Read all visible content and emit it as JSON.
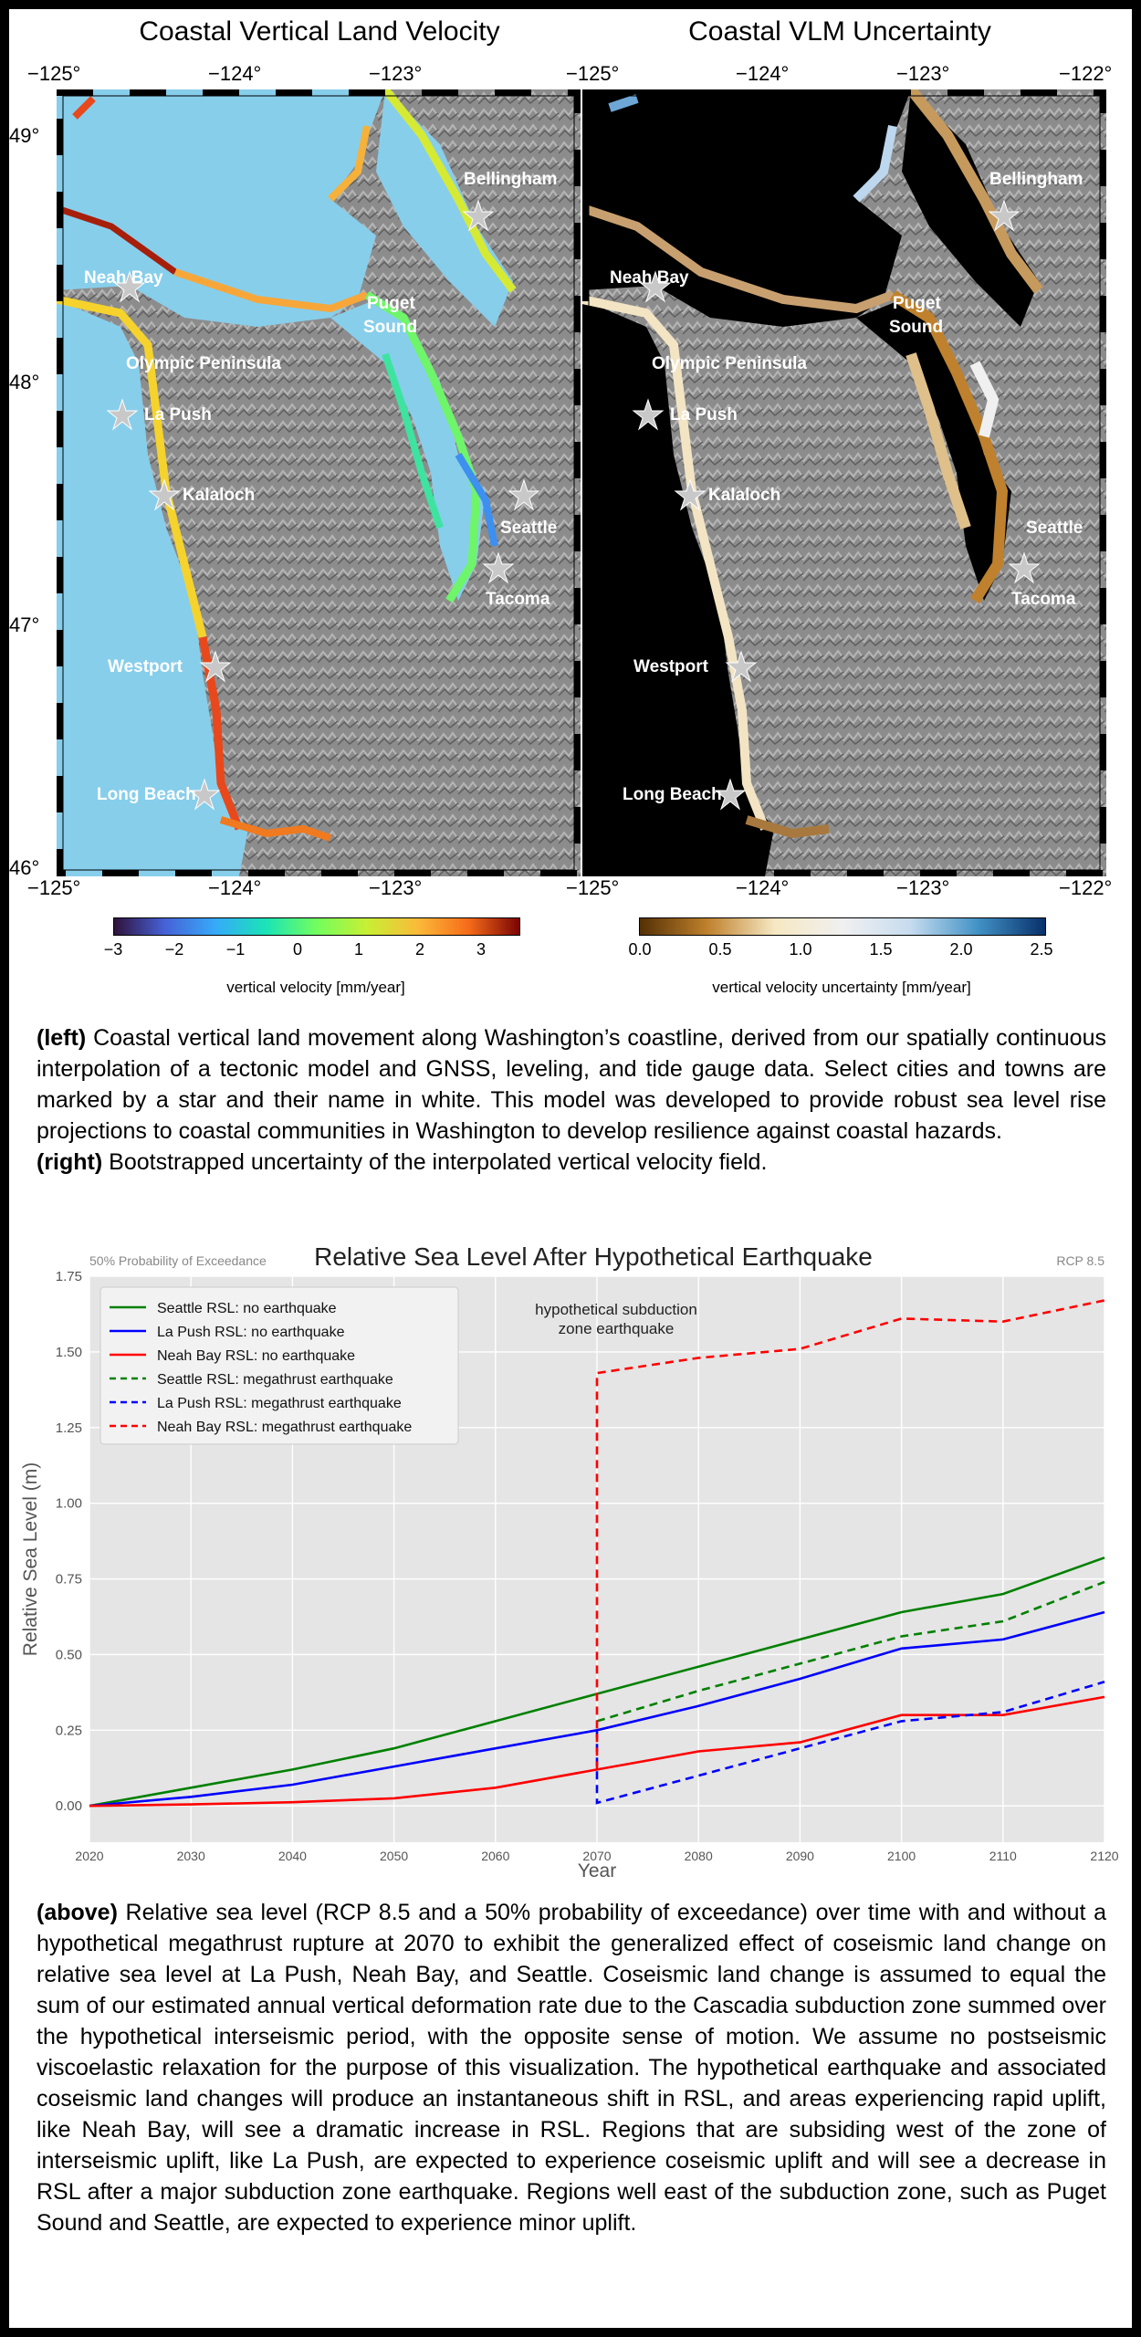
{
  "maps": {
    "left": {
      "title": "Coastal Vertical Land Velocity",
      "colorbar_ticks": [
        "−3",
        "−2",
        "−1",
        "0",
        "1",
        "2",
        "3"
      ],
      "colorbar_label": "vertical velocity [mm/year]"
    },
    "right": {
      "title": "Coastal VLM Uncertainty",
      "colorbar_ticks": [
        "0.0",
        "0.5",
        "1.0",
        "1.5",
        "2.0",
        "2.5"
      ],
      "colorbar_label": "vertical velocity uncertainty [mm/year]"
    },
    "lon_ticks_left": [
      "−125°",
      "−124°",
      "−123°"
    ],
    "lon_ticks_right": [
      "−125°",
      "−124°",
      "−123°",
      "−122°"
    ],
    "lat_ticks": [
      "49°",
      "48°",
      "47°",
      "46°"
    ],
    "cities": [
      "Bellingham",
      "Neah Bay",
      "Puget",
      "Sound",
      "Olympic Peninsula",
      "La Push",
      "Kalaloch",
      "Seattle",
      "Tacoma",
      "Westport",
      "Long Beach"
    ],
    "colors": {
      "water": "#87ceeb",
      "terrain": "#8a8a8a",
      "ocean_right": "#000000"
    }
  },
  "captions": {
    "left_label": "(left)",
    "left_text": " Coastal vertical land movement along Washington’s coastline, derived from our spatially continuous interpolation of a tectonic model and GNSS, leveling, and tide gauge data. Select cities and towns are marked by a star and their name in white. This model was developed to provide robust sea level rise projections to coastal communities in Washington to develop resilience against coastal hazards.",
    "right_label": "(right)",
    "right_text": " Bootstrapped uncertainty of the interpolated vertical velocity field.",
    "above_label": "(above)",
    "above_text": " Relative sea level (RCP 8.5 and a 50% probability of exceedance) over time with and without a hypothetical megathrust rupture at 2070 to exhibit the generalized effect of coseismic land change on relative sea level at La Push, Neah Bay, and Seattle. Coseismic land change is assumed to equal the sum of our estimated annual vertical deformation rate due to the Cascadia subduction zone summed over the hypothetical interseismic period, with the opposite sense of motion. We assume no postseismic viscoelastic relaxation for the purpose of this visualization. The hypothetical earthquake and associated coseismic land changes will produce an instantaneous shift in RSL, and areas experiencing rapid uplift, like Neah Bay, will see a dramatic increase in RSL. Regions that are subsiding west of the zone of interseismic uplift, like La Push, are expected to experience coseismic uplift and will see a decrease in RSL after a major subduction zone earthquake. Regions well east of the subduction zone, such as Puget Sound and Seattle, are expected to experience minor uplift."
  },
  "chart_data": {
    "type": "line",
    "title": "Relative Sea Level After Hypothetical Earthquake",
    "subtitle_left": "50% Probability of Exceedance",
    "subtitle_right": "RCP 8.5",
    "xlabel": "Year",
    "ylabel": "Relative Sea Level (m)",
    "xlim": [
      2020,
      2120
    ],
    "ylim": [
      -0.12,
      1.75
    ],
    "xticks": [
      2020,
      2030,
      2040,
      2050,
      2060,
      2070,
      2080,
      2090,
      2100,
      2110,
      2120
    ],
    "yticks": [
      0.0,
      0.25,
      0.5,
      0.75,
      1.0,
      1.25,
      1.5,
      1.75
    ],
    "annotation": [
      "hypothetical subduction",
      "zone earthquake"
    ],
    "legend_position": "top-left",
    "series": [
      {
        "name": "Seattle RSL: no earthquake",
        "color": "#008000",
        "dash": false,
        "x": [
          2020,
          2030,
          2040,
          2050,
          2060,
          2070,
          2080,
          2090,
          2100,
          2110,
          2120
        ],
        "y": [
          0.0,
          0.06,
          0.12,
          0.19,
          0.28,
          0.37,
          0.46,
          0.55,
          0.64,
          0.7,
          0.82
        ]
      },
      {
        "name": "La Push RSL: no earthquake",
        "color": "#0000ff",
        "dash": false,
        "x": [
          2020,
          2030,
          2040,
          2050,
          2060,
          2070,
          2080,
          2090,
          2100,
          2110,
          2120
        ],
        "y": [
          0.0,
          0.03,
          0.07,
          0.13,
          0.19,
          0.25,
          0.33,
          0.42,
          0.52,
          0.55,
          0.64
        ]
      },
      {
        "name": "Neah Bay RSL: no earthquake",
        "color": "#ff0000",
        "dash": false,
        "x": [
          2020,
          2030,
          2040,
          2050,
          2060,
          2070,
          2080,
          2090,
          2100,
          2110,
          2120
        ],
        "y": [
          0.0,
          0.005,
          0.012,
          0.025,
          0.06,
          0.12,
          0.18,
          0.21,
          0.3,
          0.3,
          0.36
        ]
      },
      {
        "name": "Seattle RSL: megathrust earthquake",
        "color": "#008000",
        "dash": true,
        "x": [
          2070,
          2080,
          2090,
          2100,
          2110,
          2120
        ],
        "y": [
          0.28,
          0.38,
          0.47,
          0.56,
          0.61,
          0.74
        ]
      },
      {
        "name": "La Push RSL: megathrust earthquake",
        "color": "#0000ff",
        "dash": true,
        "x": [
          2070,
          2070,
          2080,
          2090,
          2100,
          2110,
          2120
        ],
        "y": [
          0.25,
          0.01,
          0.1,
          0.19,
          0.28,
          0.31,
          0.41
        ]
      },
      {
        "name": "Neah Bay RSL: megathrust earthquake",
        "color": "#ff0000",
        "dash": true,
        "x": [
          2070,
          2070,
          2080,
          2090,
          2100,
          2110,
          2120
        ],
        "y": [
          0.12,
          1.43,
          1.48,
          1.51,
          1.61,
          1.6,
          1.67
        ]
      }
    ]
  }
}
